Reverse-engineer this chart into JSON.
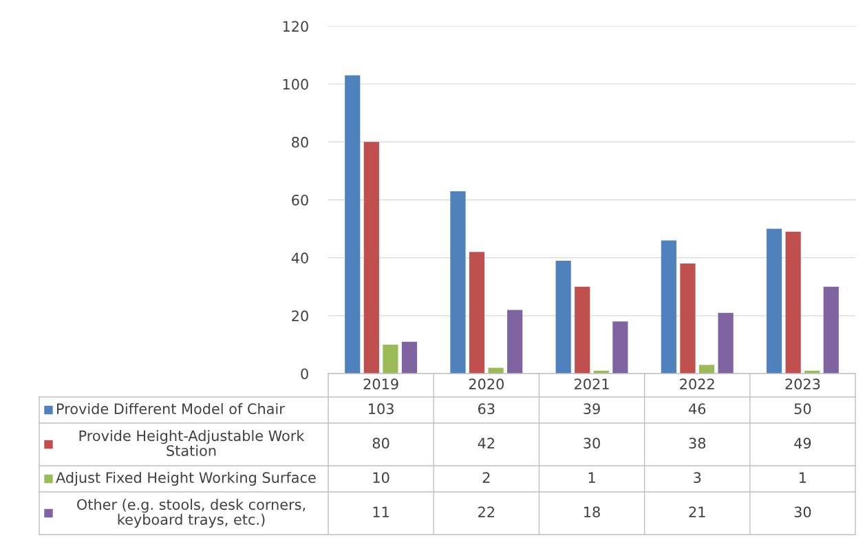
{
  "chart_data": {
    "type": "bar",
    "categories": [
      "2019",
      "2020",
      "2021",
      "2022",
      "2023"
    ],
    "series": [
      {
        "name": "Provide Different Model of Chair",
        "color": "#4f81bd",
        "values": [
          103,
          63,
          39,
          46,
          50
        ]
      },
      {
        "name": "Provide Height-Adjustable Work Station",
        "color": "#c0504d",
        "values": [
          80,
          42,
          30,
          38,
          49
        ]
      },
      {
        "name": "Adjust Fixed Height Working Surface",
        "color": "#9bbb59",
        "values": [
          10,
          2,
          1,
          3,
          1
        ]
      },
      {
        "name": "Other (e.g. stools, desk corners, keyboard trays, etc.)",
        "color": "#8064a2",
        "values": [
          11,
          22,
          18,
          21,
          30
        ]
      }
    ],
    "ylim": [
      0,
      120
    ],
    "yticks": [
      0,
      20,
      40,
      60,
      80,
      100,
      120
    ],
    "grid": "y",
    "legend": "bottom",
    "data_labels": true,
    "tick_labels": "y"
  }
}
